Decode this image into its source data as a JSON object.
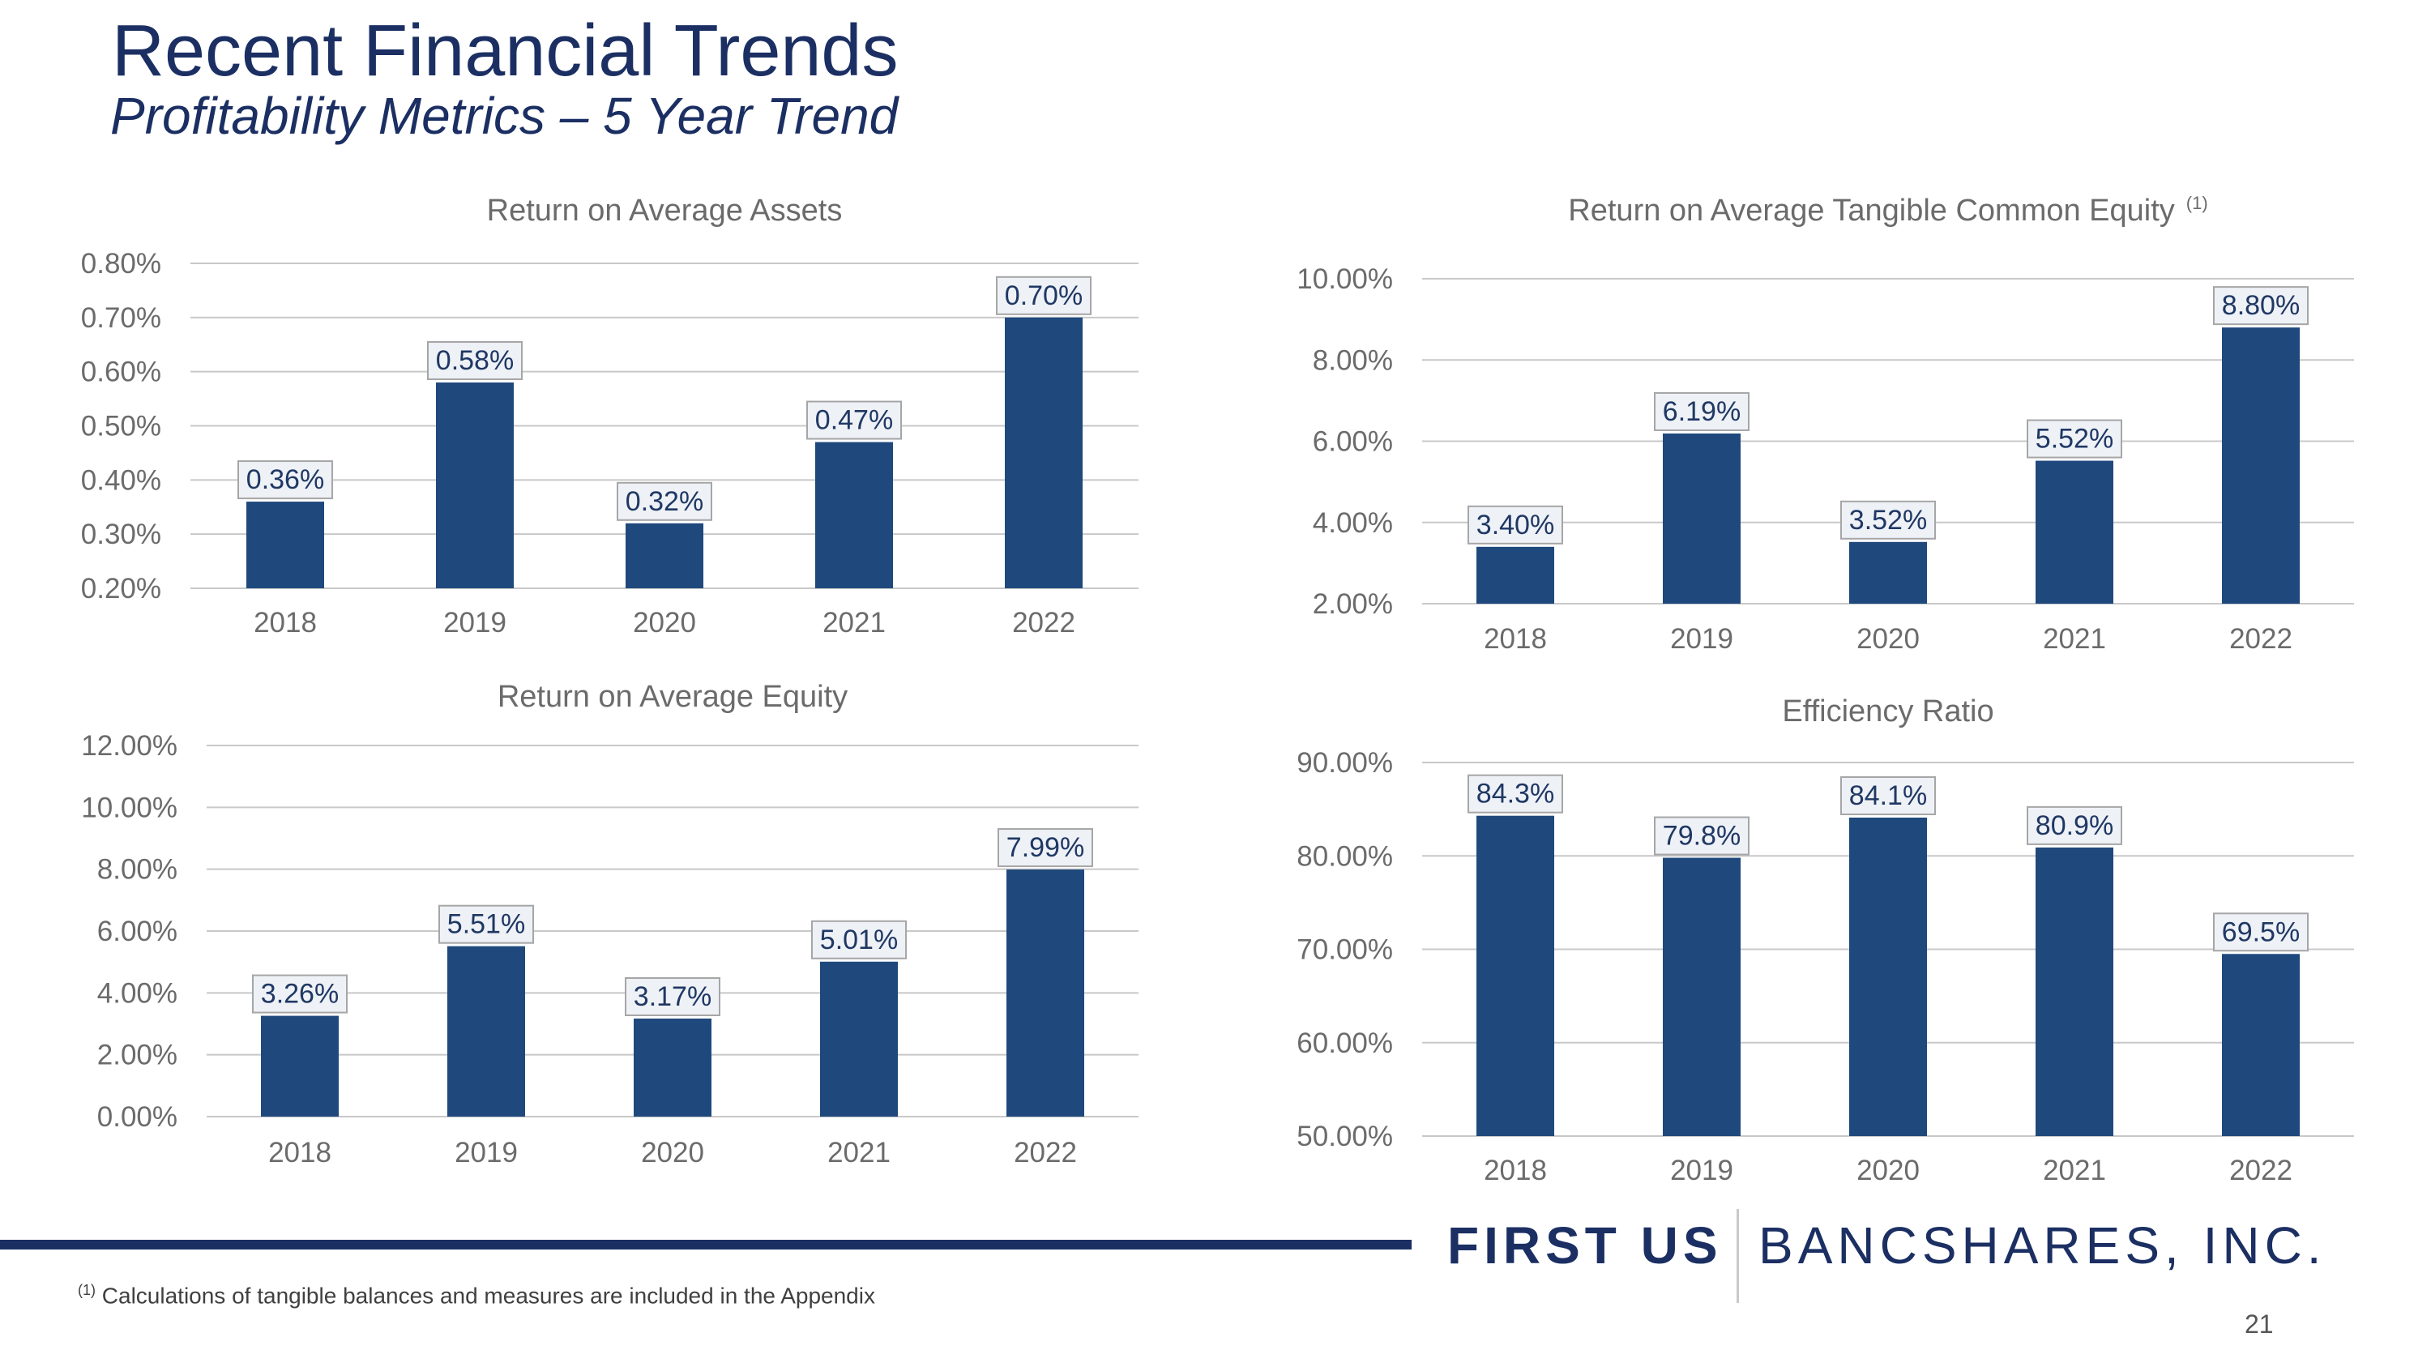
{
  "slide": {
    "title": "Recent Financial Trends",
    "subtitle": "Profitability Metrics – 5 Year Trend",
    "footnote_marker": "(1)",
    "footnote_text": "Calculations of tangible balances and measures are included in the Appendix",
    "page_number": "21",
    "logo_left": "FIRST US",
    "logo_right": "BANCSHARES, INC.",
    "colors": {
      "brand_navy": "#1b2f63",
      "bar": "#1f497d"
    }
  },
  "chart_data": [
    {
      "type": "bar",
      "title": "Return on Average Assets",
      "categories": [
        "2018",
        "2019",
        "2020",
        "2021",
        "2022"
      ],
      "values": [
        0.36,
        0.58,
        0.32,
        0.47,
        0.7
      ],
      "data_labels": [
        "0.36%",
        "0.58%",
        "0.32%",
        "0.47%",
        "0.70%"
      ],
      "ylim": [
        0.2,
        0.8
      ],
      "yticks": [
        0.2,
        0.3,
        0.4,
        0.5,
        0.6,
        0.7,
        0.8
      ],
      "ytick_labels": [
        "0.20%",
        "0.30%",
        "0.40%",
        "0.50%",
        "0.60%",
        "0.70%",
        "0.80%"
      ]
    },
    {
      "type": "bar",
      "title": "Return on Average Tangible Common Equity",
      "title_sup": "(1)",
      "categories": [
        "2018",
        "2019",
        "2020",
        "2021",
        "2022"
      ],
      "values": [
        3.4,
        6.19,
        3.52,
        5.52,
        8.8
      ],
      "data_labels": [
        "3.40%",
        "6.19%",
        "3.52%",
        "5.52%",
        "8.80%"
      ],
      "ylim": [
        2,
        10
      ],
      "yticks": [
        2,
        4,
        6,
        8,
        10
      ],
      "ytick_labels": [
        "2.00%",
        "4.00%",
        "6.00%",
        "8.00%",
        "10.00%"
      ]
    },
    {
      "type": "bar",
      "title": "Return on Average Equity",
      "categories": [
        "2018",
        "2019",
        "2020",
        "2021",
        "2022"
      ],
      "values": [
        3.26,
        5.51,
        3.17,
        5.01,
        7.99
      ],
      "data_labels": [
        "3.26%",
        "5.51%",
        "3.17%",
        "5.01%",
        "7.99%"
      ],
      "ylim": [
        0,
        12
      ],
      "yticks": [
        0,
        2,
        4,
        6,
        8,
        10,
        12
      ],
      "ytick_labels": [
        "0.00%",
        "2.00%",
        "4.00%",
        "6.00%",
        "8.00%",
        "10.00%",
        "12.00%"
      ]
    },
    {
      "type": "bar",
      "title": "Efficiency Ratio",
      "categories": [
        "2018",
        "2019",
        "2020",
        "2021",
        "2022"
      ],
      "values": [
        84.3,
        79.8,
        84.1,
        80.9,
        69.5
      ],
      "data_labels": [
        "84.3%",
        "79.8%",
        "84.1%",
        "80.9%",
        "69.5%"
      ],
      "ylim": [
        50,
        90
      ],
      "yticks": [
        50,
        60,
        70,
        80,
        90
      ],
      "ytick_labels": [
        "50.00%",
        "60.00%",
        "70.00%",
        "80.00%",
        "90.00%"
      ]
    }
  ]
}
